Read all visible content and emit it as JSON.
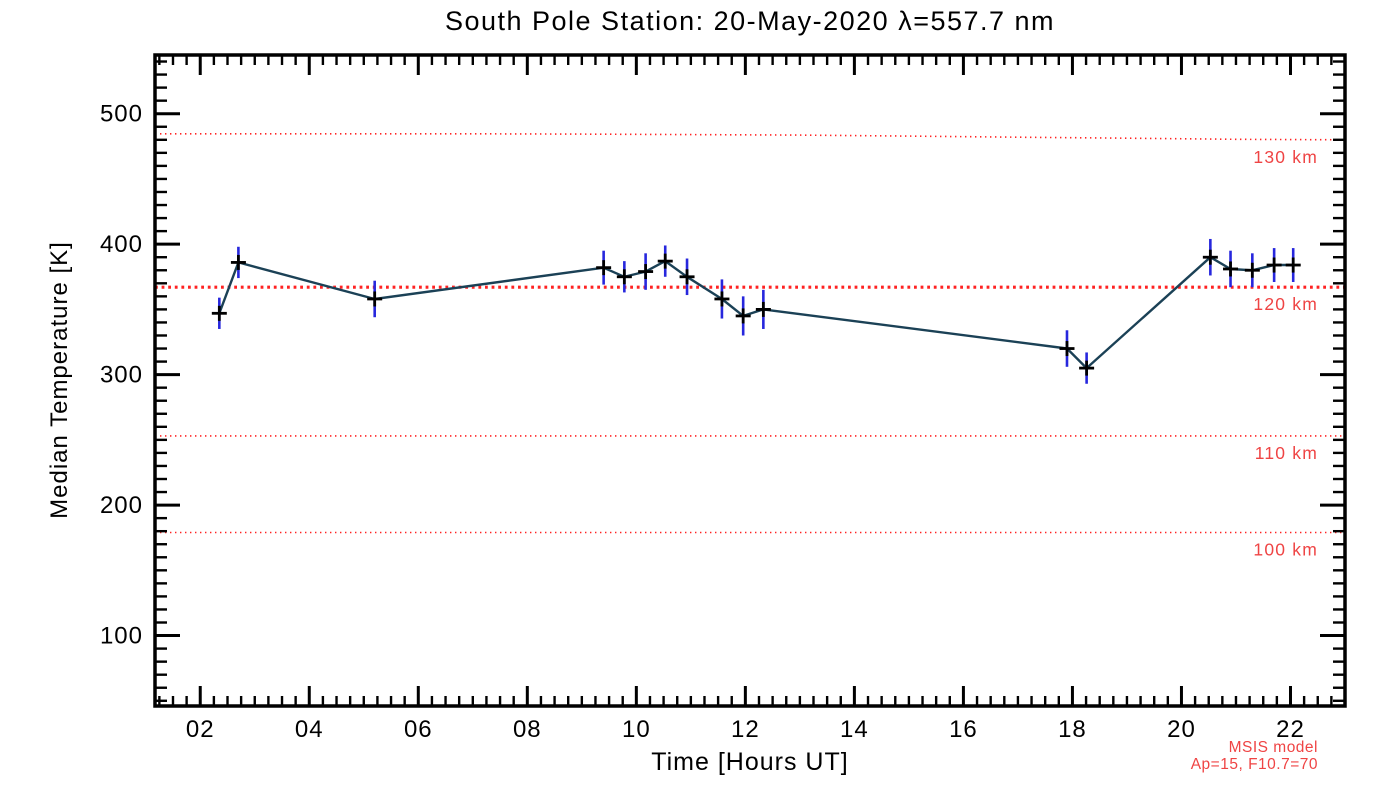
{
  "page": {
    "background": "#ffffff"
  },
  "chart_data": {
    "type": "line",
    "title": "South Pole Station: 20-May-2020 λ=557.7 nm",
    "xlabel": "Time [Hours UT]",
    "ylabel": "Median Temperature [K]",
    "xlim": [
      1.17,
      23.0
    ],
    "ylim": [
      46,
      545
    ],
    "grid": false,
    "legend_position": "none",
    "x_major_ticks": [
      {
        "value": 2,
        "label": "02"
      },
      {
        "value": 4,
        "label": "04"
      },
      {
        "value": 6,
        "label": "06"
      },
      {
        "value": 8,
        "label": "08"
      },
      {
        "value": 10,
        "label": "10"
      },
      {
        "value": 12,
        "label": "12"
      },
      {
        "value": 14,
        "label": "14"
      },
      {
        "value": 16,
        "label": "16"
      },
      {
        "value": 18,
        "label": "18"
      },
      {
        "value": 20,
        "label": "20"
      },
      {
        "value": 22,
        "label": "22"
      }
    ],
    "x_minor_step": 0.25,
    "y_major_ticks": [
      {
        "value": 100,
        "label": "100"
      },
      {
        "value": 200,
        "label": "200"
      },
      {
        "value": 300,
        "label": "300"
      },
      {
        "value": 400,
        "label": "400"
      },
      {
        "value": 500,
        "label": "500"
      }
    ],
    "y_minor_step": 10,
    "colors": {
      "axis": "#000000",
      "series_line": "#1b4156",
      "error_bar": "#2727dd",
      "marker": "#000000",
      "model_line": "#ff2222",
      "model_label": "#ef4444"
    },
    "series": [
      {
        "name": "median-temperature",
        "marker": "plus",
        "points": [
          {
            "t": 2.35,
            "T": 347,
            "err": 12
          },
          {
            "t": 2.7,
            "T": 386,
            "err": 12
          },
          {
            "t": 5.2,
            "T": 358,
            "err": 14
          },
          {
            "t": 9.4,
            "T": 382,
            "err": 13
          },
          {
            "t": 9.78,
            "T": 375,
            "err": 12
          },
          {
            "t": 10.17,
            "T": 379,
            "err": 14
          },
          {
            "t": 10.53,
            "T": 387,
            "err": 12
          },
          {
            "t": 10.93,
            "T": 375,
            "err": 14
          },
          {
            "t": 11.57,
            "T": 358,
            "err": 15
          },
          {
            "t": 11.96,
            "T": 345,
            "err": 15
          },
          {
            "t": 12.33,
            "T": 350,
            "err": 15
          },
          {
            "t": 17.9,
            "T": 320,
            "err": 14
          },
          {
            "t": 18.26,
            "T": 305,
            "err": 12
          },
          {
            "t": 20.53,
            "T": 390,
            "err": 14
          },
          {
            "t": 20.9,
            "T": 381,
            "err": 14
          },
          {
            "t": 21.3,
            "T": 380,
            "err": 13
          },
          {
            "t": 21.7,
            "T": 384,
            "err": 13
          },
          {
            "t": 22.05,
            "T": 384,
            "err": 13
          }
        ]
      }
    ],
    "model_lines": [
      {
        "label": "130 km",
        "style": "fine-dotted",
        "points": [
          [
            1.17,
            484.6
          ],
          [
            7,
            484.6
          ],
          [
            9,
            484.4
          ],
          [
            11,
            484.0
          ],
          [
            13,
            483.6
          ],
          [
            15,
            482.8
          ],
          [
            17,
            482.0
          ],
          [
            19,
            481.2
          ],
          [
            21,
            480.4
          ],
          [
            23,
            480.0
          ]
        ]
      },
      {
        "label": "120 km",
        "style": "bold-dotted",
        "points": [
          [
            1.17,
            367
          ],
          [
            23,
            367
          ]
        ]
      },
      {
        "label": "110 km",
        "style": "fine-dotted",
        "points": [
          [
            1.17,
            253
          ],
          [
            23,
            253
          ]
        ]
      },
      {
        "label": "100 km",
        "style": "fine-dotted",
        "points": [
          [
            1.17,
            179
          ],
          [
            23,
            179
          ]
        ]
      }
    ],
    "annotations": [
      {
        "name": "msis-model-label",
        "text": "MSIS model"
      },
      {
        "name": "msis-params-label",
        "text": "Ap=15, F10.7=70"
      }
    ]
  }
}
